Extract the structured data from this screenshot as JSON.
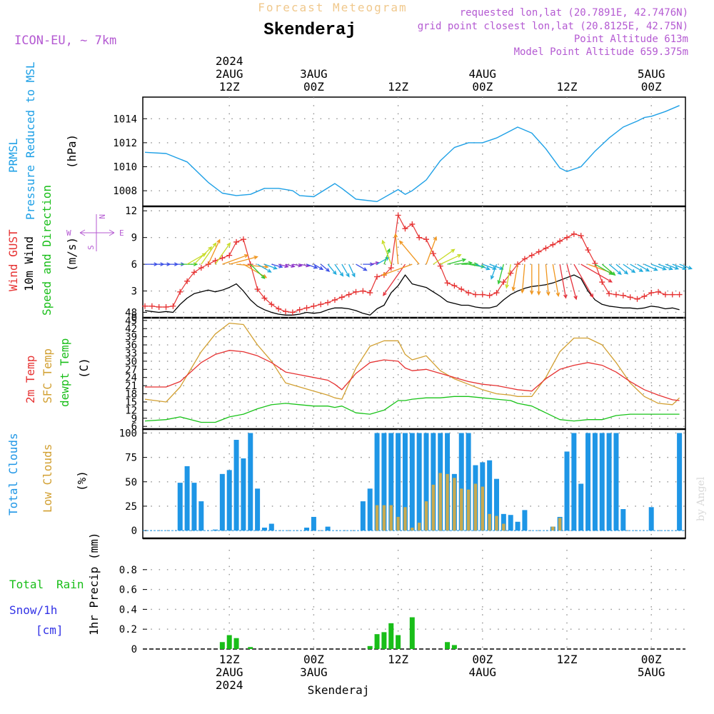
{
  "header": {
    "supertitle": "Forecast Meteogram",
    "station": "Skenderaj",
    "model": "ICON-EU, ~ 7km",
    "info": [
      "requested lon,lat (20.7891E, 42.7476N)",
      "grid point closest lon,lat (20.8125E, 42.75N)",
      "Point Altitude 613m",
      "Model Point Altitude 659.375m"
    ],
    "credit": "by Angel",
    "bottom_name": "Skenderaj",
    "compass": {
      "n": "N",
      "s": "S",
      "w": "W",
      "e": "E"
    }
  },
  "colors": {
    "pressure": "#1ea0e6",
    "gust": "#e63232",
    "wind": "#000000",
    "temp2m": "#e63232",
    "sfc": "#d2a032",
    "dewpt": "#19c319",
    "total_clouds": "#1e96e6",
    "low_clouds": "#c8aa50",
    "rain": "#19be19",
    "snow": "#3232e6",
    "info": "#b45ad2",
    "supertitle": "#f0c88c"
  },
  "time_axis": {
    "top_ticks": [
      {
        "x": 12,
        "lines": [
          "2024",
          "2AUG",
          "12Z"
        ]
      },
      {
        "x": 24,
        "lines": [
          "3AUG",
          "00Z"
        ]
      },
      {
        "x": 36,
        "lines": [
          "12Z"
        ]
      },
      {
        "x": 48,
        "lines": [
          "4AUG",
          "00Z"
        ]
      },
      {
        "x": 60,
        "lines": [
          "12Z"
        ]
      },
      {
        "x": 72,
        "lines": [
          "5AUG",
          "00Z"
        ]
      }
    ],
    "bottom_ticks": [
      {
        "x": 12,
        "lines": [
          "12Z",
          "2AUG",
          "2024"
        ]
      },
      {
        "x": 24,
        "lines": [
          "00Z",
          "3AUG"
        ]
      },
      {
        "x": 36,
        "lines": [
          "12Z"
        ]
      },
      {
        "x": 48,
        "lines": [
          "00Z",
          "4AUG"
        ]
      },
      {
        "x": 60,
        "lines": [
          "12Z"
        ]
      },
      {
        "x": 72,
        "lines": [
          "00Z",
          "5AUG"
        ]
      }
    ]
  },
  "chart_data": [
    {
      "type": "line",
      "id": "pressure",
      "labels": [
        "PRMSL",
        "Pressure Reduced to MSL"
      ],
      "ylabel": "(hPa)",
      "ylim": [
        1006.7,
        1015.8
      ],
      "yticks": [
        1008,
        1010,
        1012,
        1014
      ],
      "x": [
        0,
        3,
        6,
        9,
        11,
        13,
        15,
        17,
        19,
        21,
        22,
        24,
        27,
        28,
        30,
        33,
        36,
        37,
        38,
        40,
        42,
        44,
        46,
        48,
        50,
        52,
        53,
        55,
        57,
        59,
        60,
        62,
        64,
        66,
        68,
        70,
        71,
        72,
        74,
        76
      ],
      "series": [
        {
          "values": [
            1011.2,
            1011.1,
            1010.4,
            1008.7,
            1007.8,
            1007.6,
            1007.7,
            1008.2,
            1008.2,
            1008.0,
            1007.6,
            1007.5,
            1008.6,
            1008.2,
            1007.3,
            1007.1,
            1008.1,
            1007.7,
            1008.0,
            1008.9,
            1010.5,
            1011.6,
            1012.0,
            1012.0,
            1012.4,
            1013.0,
            1013.3,
            1012.8,
            1011.5,
            1009.9,
            1009.6,
            1010.0,
            1011.3,
            1012.4,
            1013.3,
            1013.8,
            1014.1,
            1014.2,
            1014.6,
            1015.1
          ]
        }
      ]
    },
    {
      "type": "line",
      "id": "wind",
      "labels": [
        "Wind GUST",
        "10m Wind",
        "Speed and Direction"
      ],
      "ylabel": "(m/s)",
      "ylim": [
        0,
        12.5
      ],
      "yticks": [
        0,
        3,
        6,
        9,
        12
      ],
      "arrow_speed_ref": 6,
      "x": [
        0,
        1,
        2,
        3,
        4,
        5,
        6,
        7,
        8,
        9,
        10,
        11,
        12,
        13,
        14,
        15,
        16,
        17,
        18,
        19,
        20,
        21,
        22,
        23,
        24,
        25,
        26,
        27,
        28,
        29,
        30,
        31,
        32,
        33,
        34,
        35,
        36,
        37,
        38,
        39,
        40,
        41,
        42,
        43,
        44,
        45,
        46,
        47,
        48,
        49,
        50,
        51,
        52,
        53,
        54,
        55,
        56,
        57,
        58,
        59,
        60,
        61,
        62,
        63,
        64,
        65,
        66,
        67,
        68,
        69,
        70,
        71,
        72,
        73,
        74,
        75,
        76
      ],
      "series": [
        {
          "name": "Wind GUST",
          "values": [
            1.3,
            1.3,
            1.2,
            1.2,
            1.3,
            2.9,
            4.1,
            5.1,
            5.6,
            6.0,
            6.4,
            6.7,
            7.0,
            8.5,
            8.8,
            6.0,
            3.2,
            2.2,
            1.5,
            1.0,
            0.7,
            0.6,
            0.9,
            1.1,
            1.3,
            1.5,
            1.7,
            2.0,
            2.3,
            2.6,
            2.9,
            3.0,
            2.8,
            4.6,
            4.8,
            5.6,
            11.5,
            10.0,
            10.5,
            9.0,
            8.8,
            7.2,
            5.8,
            3.9,
            3.6,
            3.2,
            2.8,
            2.6,
            2.6,
            2.5,
            2.8,
            4.0,
            5.0,
            6.0,
            6.6,
            7.0,
            7.4,
            7.8,
            8.2,
            8.6,
            9.0,
            9.4,
            9.2,
            7.6,
            6.1,
            4.0,
            2.7,
            2.6,
            2.5,
            2.3,
            2.1,
            2.4,
            2.8,
            2.9,
            2.6,
            2.6,
            2.6
          ]
        },
        {
          "name": "10m Wind",
          "values": [
            0.8,
            0.7,
            0.6,
            0.7,
            0.6,
            1.5,
            2.2,
            2.7,
            2.9,
            3.1,
            2.9,
            3.1,
            3.4,
            3.8,
            3.0,
            2.0,
            1.3,
            0.9,
            0.6,
            0.4,
            0.3,
            0.3,
            0.4,
            0.6,
            0.5,
            0.6,
            0.9,
            1.1,
            1.1,
            1.0,
            0.8,
            0.5,
            0.3,
            1.0,
            1.4,
            2.8,
            3.6,
            4.8,
            3.8,
            3.6,
            3.4,
            2.9,
            2.4,
            1.8,
            1.6,
            1.4,
            1.4,
            1.2,
            1.1,
            1.1,
            1.3,
            2.0,
            2.6,
            3.0,
            3.3,
            3.5,
            3.6,
            3.7,
            3.9,
            4.2,
            4.5,
            4.8,
            4.4,
            3.0,
            2.0,
            1.5,
            1.3,
            1.2,
            1.1,
            1.1,
            1.0,
            1.1,
            1.3,
            1.2,
            1.0,
            1.1,
            0.9
          ]
        }
      ],
      "directions_deg": [
        270,
        270,
        270,
        270,
        270,
        270,
        240,
        225,
        215,
        205,
        215,
        250,
        255,
        275,
        300,
        315,
        300,
        290,
        285,
        285,
        285,
        280,
        280,
        290,
        300,
        310,
        320,
        325,
        330,
        335,
        300,
        270,
        260,
        240,
        200,
        160,
        175,
        35,
        70,
        140,
        200,
        235,
        245,
        255,
        265,
        270,
        280,
        290,
        290,
        290,
        20,
        15,
        10,
        10,
        5,
        0,
        0,
        355,
        350,
        350,
        345,
        330,
        300,
        290,
        300,
        310,
        310,
        310,
        305,
        300,
        300,
        295,
        290,
        290,
        290,
        290,
        290
      ]
    },
    {
      "type": "line",
      "id": "temperature",
      "labels": [
        "2m Temp",
        "SFC Temp",
        "dewpt Temp"
      ],
      "ylabel": "(C)",
      "ylim": [
        5,
        46
      ],
      "yticks": [
        6,
        9,
        12,
        15,
        18,
        21,
        24,
        27,
        30,
        33,
        36,
        39,
        42,
        45,
        48
      ],
      "x": [
        0,
        3,
        5,
        8,
        10,
        12,
        14,
        16,
        18,
        20,
        22,
        24,
        26,
        27,
        28,
        30,
        32,
        34,
        36,
        37,
        38,
        40,
        42,
        44,
        46,
        48,
        50,
        52,
        53,
        55,
        57,
        59,
        61,
        63,
        65,
        67,
        69,
        71,
        73,
        75,
        76
      ],
      "series": [
        {
          "name": "2m Temp",
          "values": [
            20.5,
            20.5,
            22.5,
            29.5,
            32.5,
            34.0,
            33.5,
            32.0,
            29.5,
            26.0,
            25.0,
            24.0,
            23.0,
            21.5,
            19.5,
            25.5,
            29.5,
            30.5,
            30.0,
            27.5,
            26.5,
            27.0,
            25.5,
            24.0,
            22.5,
            21.5,
            21.0,
            20.0,
            19.5,
            19.0,
            23.5,
            27.0,
            28.5,
            29.5,
            28.5,
            26.0,
            22.5,
            19.5,
            17.5,
            15.8,
            15.5
          ]
        },
        {
          "name": "SFC Temp",
          "values": [
            16.0,
            15.0,
            20.5,
            33.5,
            40.0,
            44.0,
            43.5,
            36.0,
            30.0,
            22.0,
            20.5,
            19.0,
            17.5,
            16.5,
            16.0,
            27.5,
            35.5,
            37.5,
            37.5,
            32.5,
            30.5,
            32.0,
            26.5,
            23.5,
            21.5,
            19.5,
            18.0,
            17.5,
            17.0,
            17.0,
            24.0,
            33.5,
            38.5,
            38.5,
            36.0,
            29.5,
            22.0,
            17.0,
            14.5,
            14.0,
            16.5
          ]
        },
        {
          "name": "dewpt Temp",
          "values": [
            8.0,
            8.5,
            9.5,
            7.5,
            7.5,
            9.5,
            10.5,
            12.5,
            14.0,
            14.5,
            14.0,
            13.5,
            13.5,
            13.0,
            13.5,
            11.0,
            10.5,
            12.0,
            15.5,
            15.5,
            16.0,
            16.5,
            16.5,
            17.0,
            17.0,
            16.5,
            16.0,
            15.5,
            14.5,
            13.5,
            11.0,
            8.5,
            8.0,
            8.5,
            8.5,
            10.0,
            10.5,
            10.5,
            10.5,
            10.5,
            10.5
          ]
        }
      ]
    },
    {
      "type": "bar",
      "id": "clouds",
      "labels": [
        "Total Clouds",
        "Low Clouds"
      ],
      "ylabel": "(%)",
      "ylim": [
        -8,
        104
      ],
      "yticks": [
        0,
        25,
        50,
        75,
        100
      ],
      "x": [
        5,
        6,
        7,
        8,
        9,
        10,
        11,
        12,
        13,
        14,
        15,
        16,
        17,
        18,
        23,
        24,
        26,
        31,
        32,
        33,
        34,
        35,
        36,
        37,
        38,
        39,
        40,
        41,
        42,
        43,
        44,
        45,
        46,
        47,
        48,
        49,
        50,
        51,
        52,
        53,
        54,
        58,
        59,
        60,
        61,
        62,
        63,
        64,
        65,
        66,
        67,
        68,
        72,
        76
      ],
      "series": [
        {
          "name": "Total Clouds",
          "values": [
            49,
            66,
            49,
            30,
            0,
            1,
            58,
            62,
            93,
            74,
            100,
            43,
            3,
            7,
            3,
            14,
            4,
            30,
            43,
            100,
            100,
            100,
            100,
            100,
            100,
            100,
            100,
            100,
            100,
            100,
            58,
            100,
            100,
            67,
            70,
            72,
            53,
            17,
            16,
            9,
            21,
            4,
            14,
            81,
            100,
            48,
            100,
            100,
            100,
            100,
            100,
            22,
            24,
            100
          ]
        },
        {
          "name": "Low Clouds",
          "values": [
            0,
            0,
            0,
            0,
            0,
            0,
            0,
            0,
            0,
            0,
            0,
            0,
            0,
            0,
            0,
            0,
            0,
            0,
            0,
            26,
            26,
            26,
            14,
            24,
            3,
            8,
            30,
            47,
            59,
            58,
            54,
            43,
            42,
            48,
            45,
            17,
            15,
            7,
            0,
            0,
            0,
            4,
            13,
            0,
            0,
            0,
            0,
            0,
            0,
            0,
            0,
            0,
            0,
            0
          ]
        }
      ]
    },
    {
      "type": "bar",
      "id": "precip",
      "labels": [
        "Total",
        "Rain",
        "Snow/1h",
        "[cm]"
      ],
      "ylabel": "1hr Precip (mm)",
      "ylim": [
        0,
        1.0
      ],
      "yticks": [
        0,
        0.2,
        0.4,
        0.6,
        0.8
      ],
      "x": [
        11,
        12,
        13,
        15,
        32,
        33,
        34,
        35,
        36,
        38,
        43,
        44
      ],
      "series": [
        {
          "name": "Rain",
          "values": [
            0.07,
            0.14,
            0.11,
            0.02,
            0.03,
            0.15,
            0.17,
            0.26,
            0.14,
            0.32,
            0.07,
            0.04
          ]
        }
      ]
    }
  ]
}
